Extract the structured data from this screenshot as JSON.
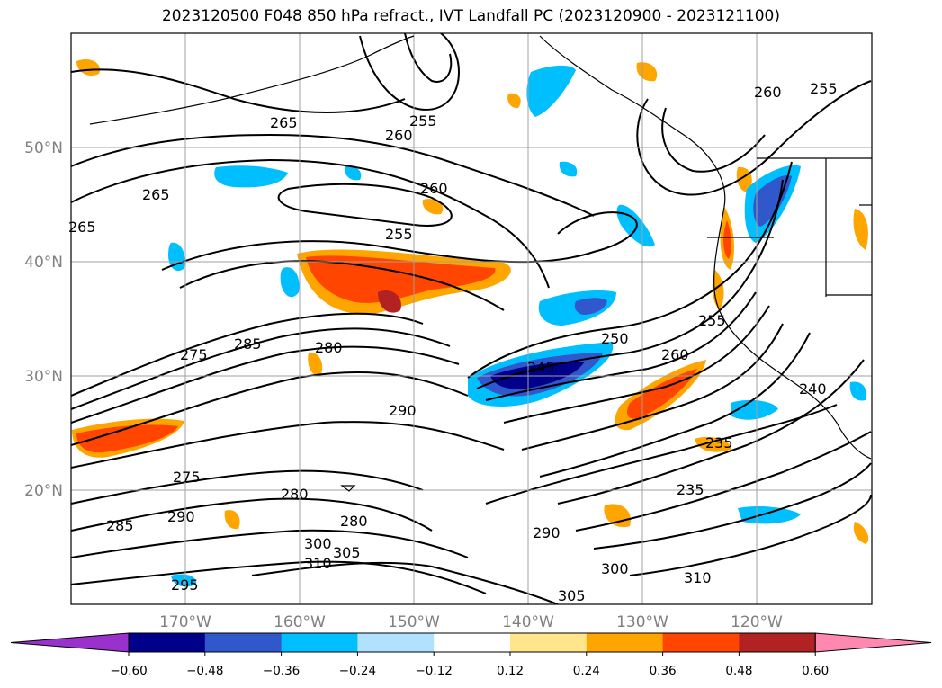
{
  "title": "2023120500 F048 850 hPa refract., IVT Landfall PC (2023120900 - 2023121100)",
  "map": {
    "lon_range": [
      -180,
      -110
    ],
    "lat_range": [
      10,
      60
    ],
    "lat_ticks": [
      {
        "value": 20,
        "label": "20°N"
      },
      {
        "value": 30,
        "label": "30°N"
      },
      {
        "value": 40,
        "label": "40°N"
      },
      {
        "value": 50,
        "label": "50°N"
      }
    ],
    "lon_ticks": [
      {
        "value": -170,
        "label": "170°W"
      },
      {
        "value": -160,
        "label": "160°W"
      },
      {
        "value": -150,
        "label": "150°W"
      },
      {
        "value": -140,
        "label": "140°W"
      },
      {
        "value": -130,
        "label": "130°W"
      },
      {
        "value": -120,
        "label": "120°W"
      }
    ],
    "grid": true,
    "contour_labels": [
      "265",
      "255",
      "260",
      "265",
      "260",
      "255",
      "265",
      "260",
      "255",
      "275",
      "285",
      "280",
      "290",
      "250",
      "245",
      "260",
      "255",
      "240",
      "235",
      "235",
      "290",
      "280",
      "275",
      "280",
      "300",
      "305",
      "310",
      "300",
      "310",
      "305",
      "290",
      "295",
      "285"
    ]
  },
  "colorbar": {
    "extend": "both",
    "ticks": [
      "−0.60",
      "−0.48",
      "−0.36",
      "−0.24",
      "−0.12",
      "0.12",
      "0.24",
      "0.36",
      "0.48",
      "0.60"
    ],
    "colors": {
      "under": "#9932cc",
      "bins": [
        "#00008b",
        "#3157cc",
        "#00bfff",
        "#b0e2ff",
        "#ffffff",
        "#ffe68a",
        "#ffa500",
        "#ff4500",
        "#b22222"
      ],
      "over": "#ff88b0"
    }
  }
}
